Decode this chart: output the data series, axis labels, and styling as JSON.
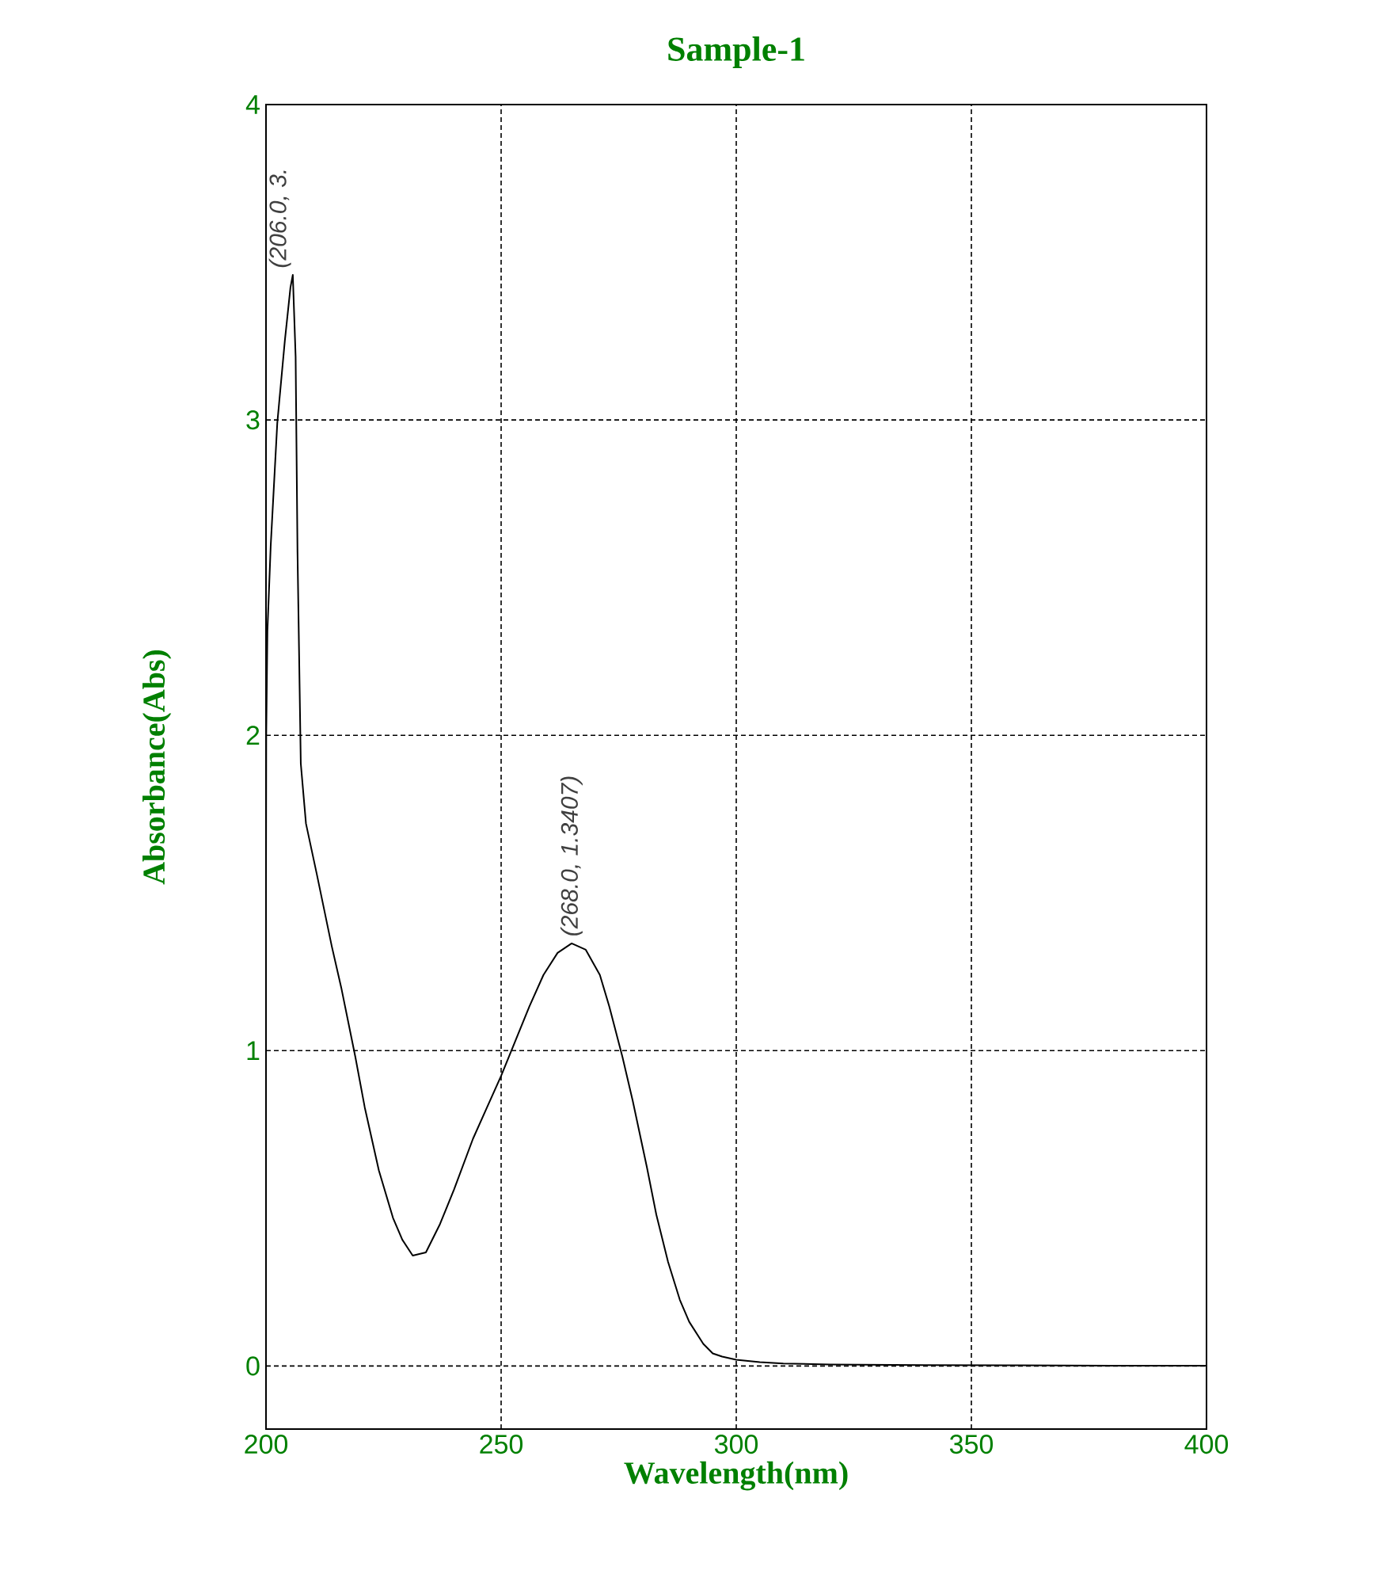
{
  "chart_data": {
    "type": "line",
    "title": "Sample-1",
    "xlabel": "Wavelength(nm)",
    "ylabel": "Absorbance(Abs)",
    "x": [
      200,
      200.05,
      200.3,
      201,
      202.4,
      204,
      205.2,
      205.7,
      206.3,
      206.7,
      207.4,
      208.5,
      210.8,
      214,
      216,
      219,
      221,
      224,
      227,
      229,
      231.2,
      234,
      237,
      240,
      244,
      247,
      250,
      253,
      256,
      259,
      262,
      265,
      268,
      271,
      273,
      275.8,
      278,
      281,
      283,
      285.5,
      288,
      290,
      293,
      295,
      297,
      300,
      305,
      310,
      320,
      340,
      360,
      380,
      400
    ],
    "values": [
      1.5,
      2.0,
      2.33,
      2.6,
      2.99,
      3.25,
      3.42,
      3.46,
      3.2,
      2.58,
      1.91,
      1.72,
      1.56,
      1.33,
      1.2,
      0.98,
      0.82,
      0.62,
      0.47,
      0.4,
      0.35,
      0.36,
      0.45,
      0.56,
      0.72,
      0.82,
      0.92,
      1.03,
      1.14,
      1.24,
      1.31,
      1.34,
      1.32,
      1.24,
      1.14,
      0.98,
      0.84,
      0.63,
      0.48,
      0.33,
      0.21,
      0.14,
      0.07,
      0.04,
      0.03,
      0.02,
      0.012,
      0.008,
      0.005,
      0.003,
      0.002,
      0.001,
      0.001
    ],
    "color": "#000000",
    "xlim": [
      200,
      400
    ],
    "ylim": [
      -0.2,
      4
    ],
    "xticks": [
      200,
      250,
      300,
      350,
      400
    ],
    "yticks": [
      0,
      1,
      2,
      3,
      4
    ],
    "grid": true,
    "annotations": [
      {
        "text": "(206.0, 3.",
        "x": 206,
        "y": 3.46
      },
      {
        "text": "(268.0, 1.3407)",
        "x": 268,
        "y": 1.3407
      }
    ]
  }
}
